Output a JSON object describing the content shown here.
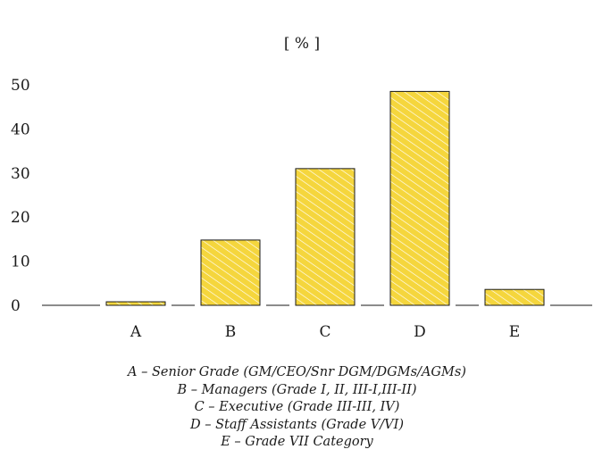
{
  "chart_data": {
    "type": "bar",
    "title": "",
    "unit_label": "[ % ]",
    "categories": [
      "A",
      "B",
      "C",
      "D",
      "E"
    ],
    "values": [
      0.8,
      14.8,
      31,
      48.5,
      3.6
    ],
    "yticks": [
      0,
      10,
      20,
      30,
      40,
      50
    ],
    "ylim": [
      0,
      50
    ],
    "xlabel": "",
    "ylabel": "",
    "grid": false,
    "bar_color": "#f5d63d",
    "hatch_color": "#ffffff",
    "outline_color": "#1a1a1a",
    "legend_entries": [
      "A – Senior Grade (GM/CEO/Snr DGM/DGMs/AGMs)",
      "B – Managers (Grade I, II, III-I,III-II)",
      "C – Executive (Grade III-III, IV)",
      "D – Staff Assistants (Grade V/VI)",
      "E – Grade VII Category"
    ]
  }
}
